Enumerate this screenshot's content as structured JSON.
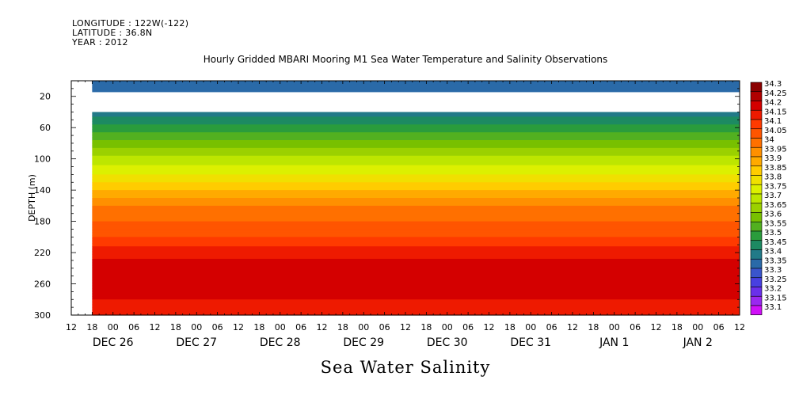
{
  "header": {
    "longitude": "LONGITUDE : 122W(-122)",
    "latitude": "LATITUDE : 36.8N",
    "year": "YEAR : 2012"
  },
  "chart_data": {
    "type": "heatmap",
    "title": "Hourly Gridded MBARI Mooring M1 Sea Water Temperature and Salinity Observations",
    "caption": "Sea Water Salinity",
    "ylabel": "DEPTH (m)",
    "ylim": [
      0,
      300
    ],
    "y_inverted": true,
    "y_ticks": [
      20,
      60,
      100,
      140,
      180,
      220,
      260,
      300
    ],
    "x_hour_ticks": [
      "12",
      "18",
      "00",
      "06",
      "12",
      "18",
      "00",
      "06",
      "12",
      "18",
      "00",
      "06",
      "12",
      "18",
      "00",
      "06",
      "12",
      "18",
      "00",
      "06",
      "12",
      "18",
      "00",
      "06",
      "12",
      "18",
      "00",
      "06",
      "12",
      "18",
      "00",
      "06",
      "12"
    ],
    "x_date_labels": [
      "DEC 26",
      "DEC 27",
      "DEC 28",
      "DEC 29",
      "DEC 30",
      "DEC 31",
      "JAN  1",
      "JAN  2"
    ],
    "x_range_hours": [
      0,
      192
    ],
    "data_start_hour": 6,
    "colorbar": {
      "levels": [
        "34.3",
        "34.25",
        "34.2",
        "34.15",
        "34.1",
        "34.05",
        "34",
        "33.95",
        "33.9",
        "33.85",
        "33.8",
        "33.75",
        "33.7",
        "33.65",
        "33.6",
        "33.55",
        "33.5",
        "33.45",
        "33.4",
        "33.35",
        "33.3",
        "33.25",
        "33.2",
        "33.15",
        "33.1"
      ],
      "colors": [
        "#8b0000",
        "#b00000",
        "#d40000",
        "#ee1a00",
        "#ff3a00",
        "#ff5500",
        "#ff7000",
        "#ff9000",
        "#ffaa00",
        "#ffcc00",
        "#f0e000",
        "#dcf000",
        "#bde600",
        "#9bd100",
        "#78c000",
        "#52b020",
        "#2a9c3c",
        "#1d8a62",
        "#227a88",
        "#2a6aa8",
        "#3a55cc",
        "#4840e0",
        "#6a30ea",
        "#9a28f0",
        "#d010f8"
      ]
    },
    "profile": [
      {
        "depth": 10,
        "value": 33.37
      },
      {
        "depth": 40,
        "value": 33.42
      },
      {
        "depth": 60,
        "value": 33.52
      },
      {
        "depth": 80,
        "value": 33.62
      },
      {
        "depth": 100,
        "value": 33.72
      },
      {
        "depth": 120,
        "value": 33.8
      },
      {
        "depth": 140,
        "value": 33.9
      },
      {
        "depth": 160,
        "value": 34.0
      },
      {
        "depth": 180,
        "value": 34.05
      },
      {
        "depth": 200,
        "value": 34.1
      },
      {
        "depth": 220,
        "value": 34.18
      },
      {
        "depth": 240,
        "value": 34.23
      },
      {
        "depth": 260,
        "value": 34.25
      },
      {
        "depth": 280,
        "value": 34.2
      },
      {
        "depth": 300,
        "value": 34.17
      }
    ],
    "data_gap_depth_range": [
      14,
      40
    ]
  }
}
